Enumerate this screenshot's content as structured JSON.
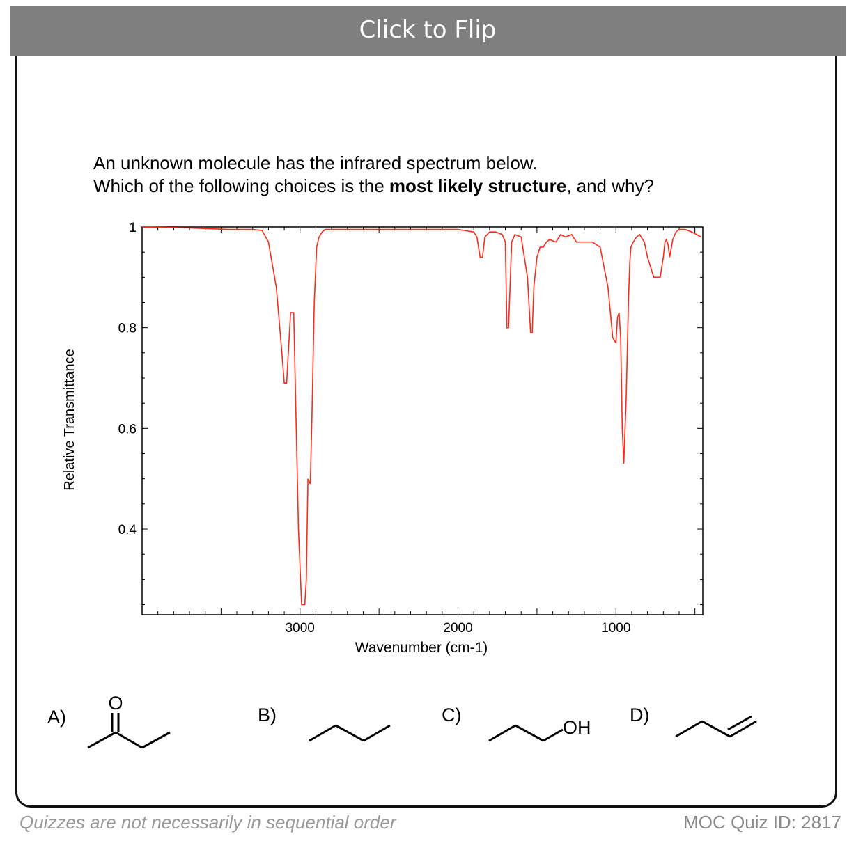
{
  "flip_button": {
    "label": "Click to Flip"
  },
  "question": {
    "line1": "An unknown molecule has the infrared spectrum below.",
    "line2_pre": "Which of the following choices is the ",
    "line2_bold": "most likely structure",
    "line2_post": ", and why?"
  },
  "chart_data": {
    "type": "line",
    "xlabel": "Wavenumber (cm-1)",
    "ylabel": "Relative Transmittance",
    "xlim": [
      4000,
      450
    ],
    "ylim": [
      0.23,
      1.0
    ],
    "x_ticks": [
      "3000",
      "2000",
      "1000"
    ],
    "y_ticks": [
      "1",
      "0.8",
      "0.6",
      "0.4"
    ],
    "series": [
      {
        "color": "#ff2a1a",
        "x": [
          4000,
          3700,
          3450,
          3300,
          3240,
          3200,
          3150,
          3120,
          3100,
          3085,
          3060,
          3040,
          3010,
          2990,
          2970,
          2960,
          2950,
          2935,
          2925,
          2910,
          2895,
          2880,
          2860,
          2840,
          2780,
          2700,
          2600,
          2300,
          2000,
          1900,
          1880,
          1860,
          1845,
          1830,
          1800,
          1760,
          1720,
          1700,
          1690,
          1680,
          1660,
          1640,
          1600,
          1560,
          1540,
          1530,
          1520,
          1500,
          1480,
          1460,
          1440,
          1420,
          1380,
          1350,
          1320,
          1280,
          1250,
          1200,
          1150,
          1100,
          1050,
          1020,
          1000,
          990,
          980,
          970,
          960,
          950,
          935,
          920,
          912,
          905,
          890,
          870,
          850,
          820,
          800,
          760,
          720,
          700,
          690,
          680,
          670,
          660,
          640,
          620,
          600,
          560,
          520,
          460
        ],
        "y": [
          1.0,
          0.998,
          0.995,
          0.995,
          0.993,
          0.97,
          0.88,
          0.77,
          0.69,
          0.69,
          0.83,
          0.83,
          0.4,
          0.25,
          0.25,
          0.3,
          0.5,
          0.49,
          0.62,
          0.85,
          0.96,
          0.98,
          0.99,
          0.995,
          0.995,
          0.995,
          0.995,
          0.995,
          0.995,
          0.99,
          0.98,
          0.94,
          0.94,
          0.98,
          0.99,
          0.99,
          0.985,
          0.97,
          0.8,
          0.8,
          0.97,
          0.985,
          0.98,
          0.9,
          0.79,
          0.79,
          0.88,
          0.94,
          0.96,
          0.96,
          0.97,
          0.975,
          0.97,
          0.985,
          0.98,
          0.985,
          0.97,
          0.97,
          0.97,
          0.96,
          0.88,
          0.78,
          0.77,
          0.82,
          0.83,
          0.78,
          0.6,
          0.53,
          0.66,
          0.86,
          0.93,
          0.96,
          0.97,
          0.98,
          0.985,
          0.97,
          0.94,
          0.9,
          0.9,
          0.94,
          0.97,
          0.975,
          0.965,
          0.94,
          0.975,
          0.99,
          0.995,
          0.995,
          0.99,
          0.98
        ]
      }
    ]
  },
  "choices": [
    {
      "label": "A)",
      "o_atom": "O"
    },
    {
      "label": "B)"
    },
    {
      "label": "C)",
      "oh_group": "OH"
    },
    {
      "label": "D)"
    }
  ],
  "footer": {
    "left": "Quizzes are not necessarily in sequential order",
    "right": "MOC Quiz ID: 2817"
  }
}
